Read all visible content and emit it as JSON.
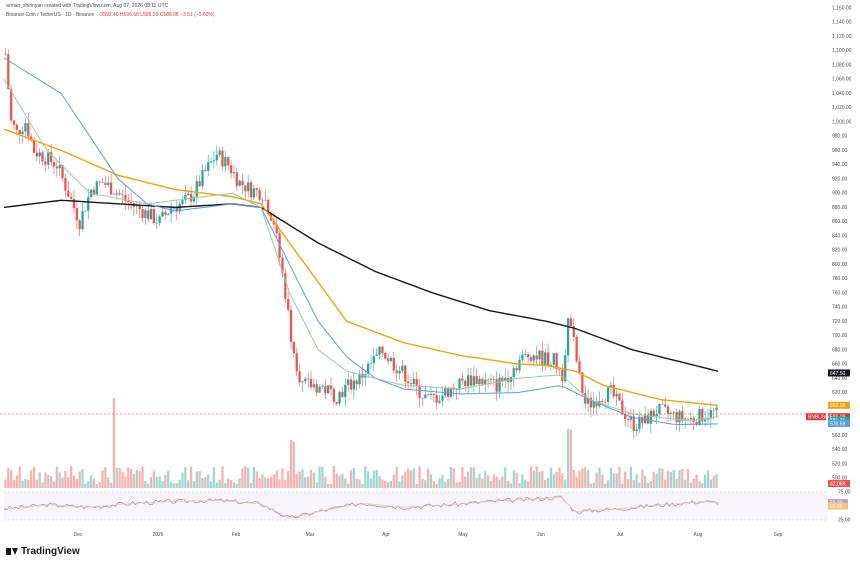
{
  "header": {
    "caption": "arman_shirinyan created with TradingView.com, Aug 07, 2026 08:11 UTC",
    "symbol": "Binance Coin / TetherUS · 1D · Binance",
    "ohlc": "O592.40 H596.68 L585.30 C586.08 −3.51 (−0.60%)"
  },
  "brand": {
    "name": "TradingView"
  },
  "chart_data": {
    "type": "candlestick",
    "x_ticks": [
      "Dec",
      "2026",
      "Feb",
      "Mar",
      "Apr",
      "May",
      "Jun",
      "Jul",
      "Aug",
      "Sep"
    ],
    "y_ticks": [
      "1,160.00",
      "1,140.00",
      "1,120.00",
      "1,100.00",
      "1,080.00",
      "1,060.00",
      "1,040.00",
      "1,020.00",
      "1,000.00",
      "980.00",
      "960.00",
      "940.00",
      "920.00",
      "900.00",
      "880.00",
      "860.00",
      "840.00",
      "820.00",
      "800.00",
      "780.00",
      "760.00",
      "740.00",
      "720.00",
      "700.00",
      "680.00",
      "660.00",
      "640.00",
      "620.00",
      "600.00",
      "580.00",
      "560.00",
      "540.00",
      "520.00",
      "500.00"
    ],
    "ylim": [
      500,
      1160
    ],
    "price_path": [
      [
        0,
        1095
      ],
      [
        2,
        1000
      ],
      [
        4,
        985
      ],
      [
        7,
        1000
      ],
      [
        10,
        960
      ],
      [
        14,
        950
      ],
      [
        18,
        940
      ],
      [
        22,
        900
      ],
      [
        26,
        860
      ],
      [
        30,
        905
      ],
      [
        34,
        915
      ],
      [
        38,
        905
      ],
      [
        42,
        890
      ],
      [
        46,
        880
      ],
      [
        50,
        870
      ],
      [
        54,
        860
      ],
      [
        58,
        880
      ],
      [
        62,
        885
      ],
      [
        66,
        900
      ],
      [
        70,
        930
      ],
      [
        74,
        955
      ],
      [
        78,
        940
      ],
      [
        82,
        915
      ],
      [
        86,
        905
      ],
      [
        90,
        900
      ],
      [
        92,
        880
      ],
      [
        94,
        860
      ],
      [
        96,
        810
      ],
      [
        98,
        760
      ],
      [
        100,
        700
      ],
      [
        102,
        660
      ],
      [
        104,
        630
      ],
      [
        108,
        630
      ],
      [
        112,
        625
      ],
      [
        116,
        615
      ],
      [
        120,
        630
      ],
      [
        124,
        640
      ],
      [
        128,
        660
      ],
      [
        132,
        678
      ],
      [
        136,
        660
      ],
      [
        140,
        645
      ],
      [
        144,
        625
      ],
      [
        148,
        610
      ],
      [
        152,
        615
      ],
      [
        156,
        625
      ],
      [
        160,
        635
      ],
      [
        164,
        640
      ],
      [
        168,
        635
      ],
      [
        172,
        630
      ],
      [
        176,
        645
      ],
      [
        180,
        665
      ],
      [
        184,
        675
      ],
      [
        188,
        668
      ],
      [
        192,
        665
      ],
      [
        195,
        645
      ],
      [
        197,
        720
      ],
      [
        199,
        690
      ],
      [
        201,
        640
      ],
      [
        203,
        605
      ],
      [
        205,
        605
      ],
      [
        208,
        615
      ],
      [
        212,
        620
      ],
      [
        216,
        595
      ],
      [
        220,
        575
      ],
      [
        224,
        580
      ],
      [
        228,
        595
      ],
      [
        232,
        590
      ],
      [
        236,
        585
      ],
      [
        240,
        582
      ],
      [
        244,
        588
      ],
      [
        248,
        592
      ],
      [
        250,
        586
      ]
    ],
    "candle_count": 250,
    "ma_series": [
      {
        "color": "#131722",
        "path": [
          [
            0,
            880
          ],
          [
            20,
            890
          ],
          [
            40,
            885
          ],
          [
            60,
            880
          ],
          [
            80,
            885
          ],
          [
            90,
            880
          ],
          [
            110,
            830
          ],
          [
            130,
            790
          ],
          [
            150,
            760
          ],
          [
            170,
            735
          ],
          [
            190,
            720
          ],
          [
            200,
            710
          ],
          [
            220,
            680
          ],
          [
            240,
            660
          ],
          [
            250,
            650
          ]
        ]
      },
      {
        "color": "#f0a30a",
        "path": [
          [
            0,
            990
          ],
          [
            20,
            960
          ],
          [
            40,
            925
          ],
          [
            60,
            905
          ],
          [
            80,
            895
          ],
          [
            90,
            885
          ],
          [
            100,
            830
          ],
          [
            120,
            720
          ],
          [
            140,
            690
          ],
          [
            160,
            672
          ],
          [
            180,
            660
          ],
          [
            190,
            658
          ],
          [
            200,
            650
          ],
          [
            210,
            630
          ],
          [
            230,
            610
          ],
          [
            250,
            602
          ]
        ]
      },
      {
        "color": "#5b9cde",
        "path": [
          [
            0,
            1090
          ],
          [
            20,
            1040
          ],
          [
            30,
            980
          ],
          [
            40,
            920
          ],
          [
            50,
            885
          ],
          [
            60,
            875
          ],
          [
            70,
            880
          ],
          [
            80,
            885
          ],
          [
            90,
            880
          ],
          [
            100,
            800
          ],
          [
            110,
            720
          ],
          [
            120,
            670
          ],
          [
            130,
            640
          ],
          [
            140,
            625
          ],
          [
            160,
            618
          ],
          [
            180,
            620
          ],
          [
            195,
            630
          ],
          [
            205,
            610
          ],
          [
            220,
            585
          ],
          [
            235,
            575
          ],
          [
            250,
            576
          ]
        ]
      },
      {
        "color": "#9fc8a0",
        "path": [
          [
            0,
            1060
          ],
          [
            15,
            960
          ],
          [
            30,
            900
          ],
          [
            50,
            885
          ],
          [
            70,
            895
          ],
          [
            80,
            900
          ],
          [
            90,
            880
          ],
          [
            100,
            760
          ],
          [
            110,
            680
          ],
          [
            120,
            650
          ],
          [
            140,
            630
          ],
          [
            160,
            625
          ],
          [
            180,
            640
          ],
          [
            195,
            645
          ],
          [
            205,
            610
          ],
          [
            220,
            590
          ],
          [
            240,
            580
          ],
          [
            250,
            586
          ]
        ]
      }
    ],
    "price_tags": [
      {
        "label": "647.50",
        "value": 647.5,
        "color": "#131722"
      },
      {
        "label": "602.08",
        "value": 602.08,
        "color": "#f0a30a"
      },
      {
        "label": "586.08",
        "value": 586.08,
        "color": "#e0323c"
      },
      {
        "label": "581.31",
        "value": 581.31,
        "color": "#26a69a"
      },
      {
        "label": "576.59",
        "value": 576.59,
        "color": "#5b9cde"
      }
    ],
    "volume_tag": "42.06K",
    "rsi": {
      "ticks": [
        "75.00",
        "25.00"
      ],
      "tags": [
        {
          "label": "56.09",
          "color": "#b39ddb"
        },
        {
          "label": "53.68",
          "color": "#f0c674"
        }
      ],
      "path": [
        [
          0,
          45
        ],
        [
          15,
          52
        ],
        [
          30,
          48
        ],
        [
          45,
          55
        ],
        [
          60,
          58
        ],
        [
          75,
          60
        ],
        [
          90,
          54
        ],
        [
          100,
          28
        ],
        [
          110,
          40
        ],
        [
          125,
          55
        ],
        [
          140,
          48
        ],
        [
          155,
          52
        ],
        [
          170,
          58
        ],
        [
          185,
          62
        ],
        [
          195,
          66
        ],
        [
          200,
          40
        ],
        [
          215,
          45
        ],
        [
          230,
          52
        ],
        [
          245,
          58
        ],
        [
          250,
          56
        ]
      ]
    },
    "up_color": "#26a69a",
    "down_color": "#ef5350",
    "grid": false,
    "legend": "top-left"
  }
}
